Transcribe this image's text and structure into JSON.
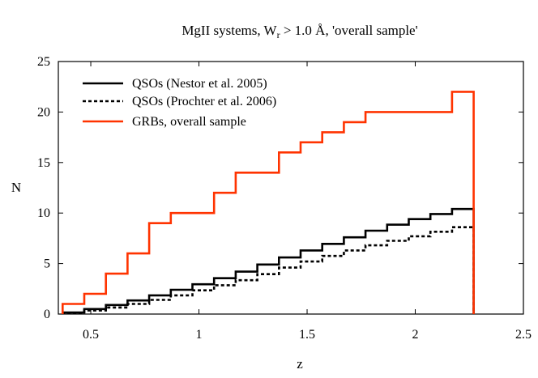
{
  "chart_data": {
    "type": "line",
    "step": true,
    "title": {
      "prefix": "MgII systems, W",
      "subscript": "r",
      "suffix": " > 1.0 Å, 'overall sample'"
    },
    "xlabel": "z",
    "ylabel": "N",
    "xlim": [
      0.35,
      2.5
    ],
    "ylim": [
      0,
      25
    ],
    "xticks": [
      0.5,
      1,
      1.5,
      2,
      2.5
    ],
    "xtick_labels": [
      "0.5",
      "1",
      "1.5",
      "2",
      "2.5"
    ],
    "yticks": [
      0,
      5,
      10,
      15,
      20,
      25
    ],
    "ytick_labels": [
      "0",
      "5",
      "10",
      "15",
      "20",
      "25"
    ],
    "legend_position": "top-left",
    "series": [
      {
        "name": "QSOs (Nestor et al. 2005)",
        "color": "#000000",
        "dash": "solid",
        "x": [
          0.37,
          0.47,
          0.57,
          0.67,
          0.77,
          0.87,
          0.97,
          1.07,
          1.17,
          1.27,
          1.37,
          1.47,
          1.57,
          1.67,
          1.77,
          1.87,
          1.97,
          2.07,
          2.17,
          2.27
        ],
        "y": [
          0.15,
          0.5,
          0.9,
          1.35,
          1.85,
          2.4,
          2.95,
          3.55,
          4.2,
          4.9,
          5.6,
          6.3,
          6.95,
          7.6,
          8.25,
          8.85,
          9.4,
          9.9,
          10.4,
          0
        ]
      },
      {
        "name": "QSOs (Prochter et al. 2006)",
        "color": "#000000",
        "dash": "dotted",
        "x": [
          0.37,
          0.47,
          0.57,
          0.67,
          0.77,
          0.87,
          0.97,
          1.07,
          1.17,
          1.27,
          1.37,
          1.47,
          1.57,
          1.67,
          1.77,
          1.87,
          1.97,
          2.07,
          2.17,
          2.27
        ],
        "y": [
          0.1,
          0.35,
          0.65,
          1.0,
          1.4,
          1.85,
          2.35,
          2.85,
          3.35,
          3.95,
          4.6,
          5.2,
          5.75,
          6.3,
          6.8,
          7.25,
          7.7,
          8.15,
          8.6,
          0
        ]
      },
      {
        "name": "GRBs, overall sample",
        "color": "#ff3300",
        "dash": "solid",
        "x": [
          0.37,
          0.47,
          0.57,
          0.67,
          0.77,
          0.87,
          0.97,
          1.07,
          1.17,
          1.27,
          1.37,
          1.47,
          1.57,
          1.67,
          1.77,
          1.87,
          1.97,
          2.07,
          2.17,
          2.27
        ],
        "y": [
          1,
          2,
          4,
          6,
          9,
          10,
          10,
          12,
          14,
          14,
          16,
          17,
          18,
          19,
          20,
          20,
          20,
          20,
          22,
          0
        ]
      }
    ]
  }
}
